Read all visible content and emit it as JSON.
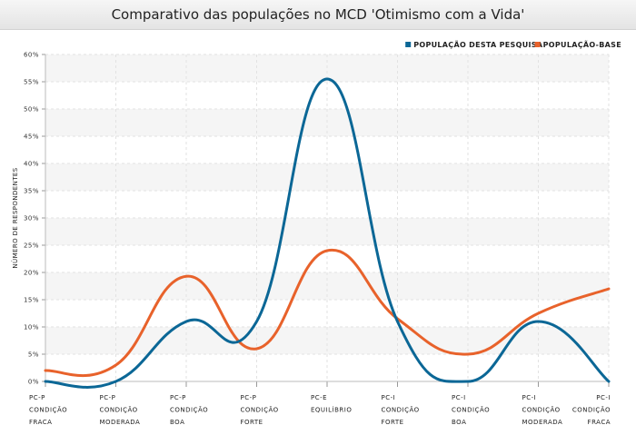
{
  "chart_data": {
    "type": "line",
    "title": "Comparativo das populações no MCD 'Otimismo com a Vida'",
    "ylabel": "NÚMERO DE RESPONDENTES",
    "xlabel": "",
    "ylim": [
      0,
      60
    ],
    "yticks": [
      "0%",
      "5%",
      "10%",
      "15%",
      "20%",
      "25%",
      "30%",
      "35%",
      "40%",
      "45%",
      "50%",
      "55%",
      "60%"
    ],
    "grid": true,
    "legend_position": "top-right",
    "categories": [
      [
        "PC-P",
        "CONDIÇÃO",
        "FRACA"
      ],
      [
        "PC-P",
        "CONDIÇÃO",
        "MODERADA"
      ],
      [
        "PC-P",
        "CONDIÇÃO",
        "BOA"
      ],
      [
        "PC-P",
        "CONDIÇÃO",
        "FORTE"
      ],
      [
        "PC-E",
        "EQUILÍBRIO",
        ""
      ],
      [
        "PC-I",
        "CONDIÇÃO",
        "FORTE"
      ],
      [
        "PC-I",
        "CONDIÇÃO",
        "BOA"
      ],
      [
        "PC-I",
        "CONDIÇÃO",
        "MODERADA"
      ],
      [
        "PC-I",
        "CONDIÇÃO",
        "FRACA"
      ]
    ],
    "series": [
      {
        "name": "POPULAÇÃO DESTA PESQUISA",
        "color": "#0b6796",
        "values": [
          0,
          0,
          11,
          11,
          55.5,
          11,
          0,
          11,
          0
        ]
      },
      {
        "name": "POPULAÇÃO-BASE",
        "color": "#e8622b",
        "values": [
          2,
          3,
          19.3,
          6,
          24,
          11.5,
          5,
          12.5,
          17
        ]
      }
    ]
  }
}
